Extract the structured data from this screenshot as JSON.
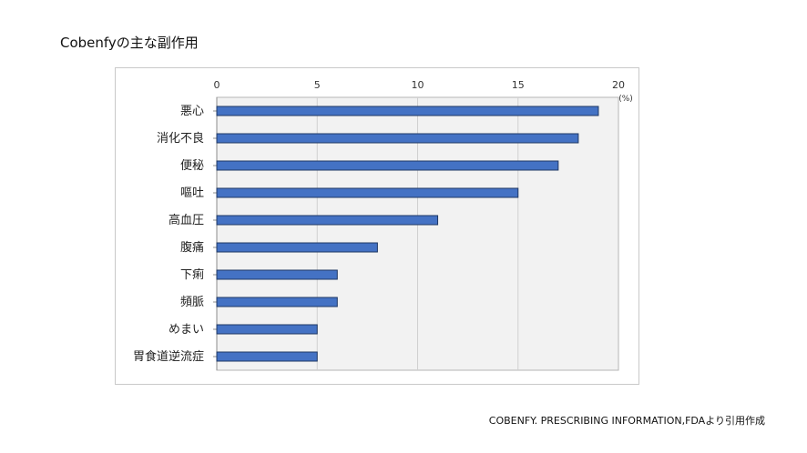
{
  "title": "Cobenfyの主な副作用",
  "source": "COBENFY. PRESCRIBING INFORMATION,FDAより引用作成",
  "colors": {
    "bar_fill": "#4472c4",
    "bar_stroke": "#1f3864",
    "plot_background": "#f2f2f2",
    "gridline": "#d0d0d0"
  },
  "chart_data": {
    "type": "bar",
    "orientation": "horizontal",
    "categories": [
      "悪心",
      "消化不良",
      "便秘",
      "嘔吐",
      "高血圧",
      "腹痛",
      "下痢",
      "頻脈",
      "めまい",
      "胃食道逆流症"
    ],
    "values": [
      19,
      18,
      17,
      15,
      11,
      8,
      6,
      6,
      5,
      5
    ],
    "unit": "(%)",
    "xlim": [
      0,
      20
    ],
    "xticks": [
      "0",
      "5",
      "10",
      "15",
      "20"
    ],
    "xaxis_position": "top",
    "grid": true,
    "legend": "none"
  }
}
